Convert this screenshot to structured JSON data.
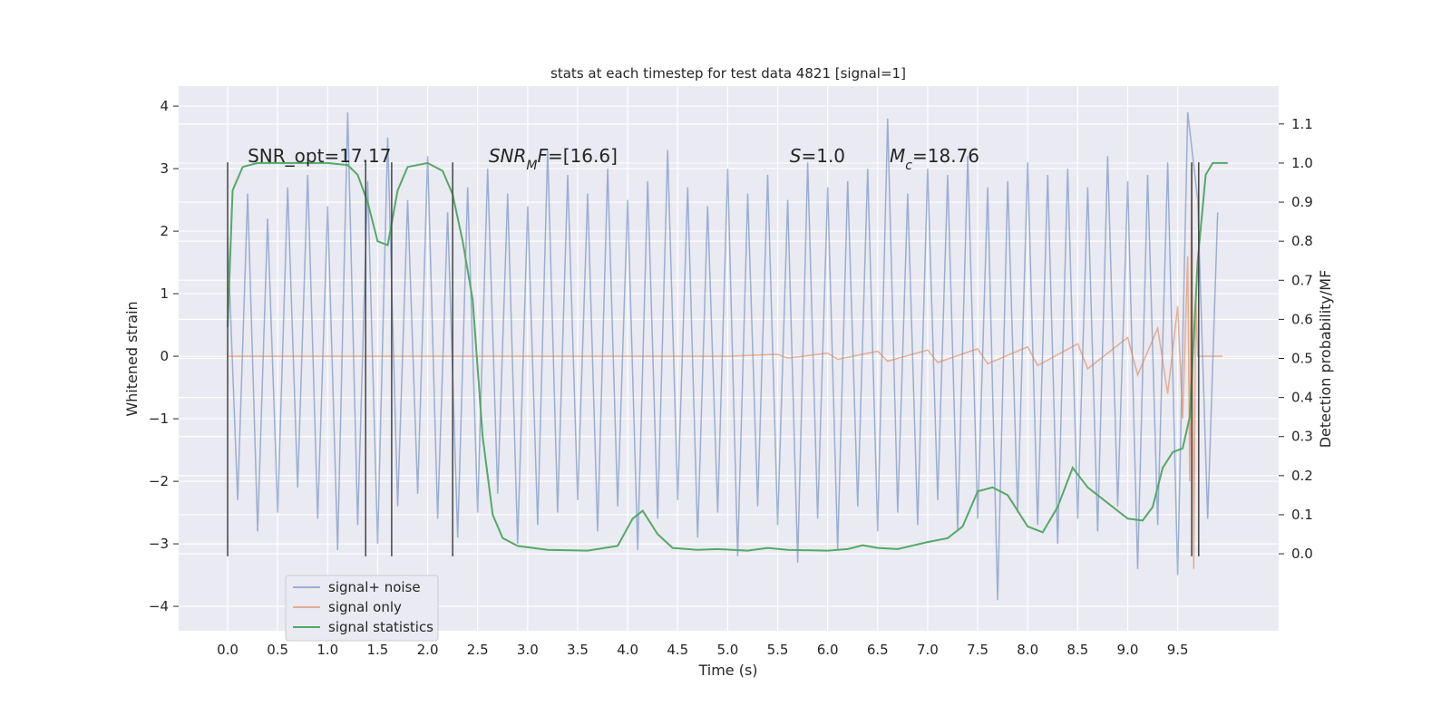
{
  "chart_data": {
    "type": "line",
    "title": "stats at each timestep for test data 4821 [signal=1]",
    "xlabel": "Time (s)",
    "ylabel": "Whitened strain",
    "y2label": "Detection probability/MF",
    "xlim": [
      -0.49,
      10.51
    ],
    "ylim": [
      -4.39,
      4.32
    ],
    "y2lim": [
      -0.197,
      1.197
    ],
    "xticks": [
      {
        "value": 0,
        "label": "0.0"
      },
      0.5,
      {
        "value": 1,
        "label": "1.0"
      },
      1.5,
      {
        "value": 2,
        "label": "2.0"
      },
      2.5,
      {
        "value": 3,
        "label": "3.0"
      },
      3.5,
      {
        "value": 4,
        "label": "4.0"
      },
      4.5,
      {
        "value": 5,
        "label": "5.0"
      },
      5.5,
      {
        "value": 6,
        "label": "6.0"
      },
      6.5,
      {
        "value": 7,
        "label": "7.0"
      },
      7.5,
      {
        "value": 8,
        "label": "8.0"
      },
      8.5,
      {
        "value": 9,
        "label": "9.0"
      },
      9.5
    ],
    "yticks": [
      {
        "value": -4,
        "label": "−4"
      },
      {
        "value": -3,
        "label": "−3"
      },
      {
        "value": -2,
        "label": "−2"
      },
      {
        "value": -1,
        "label": "−1"
      },
      0,
      1,
      2,
      3,
      4
    ],
    "y2ticks": [
      {
        "value": 0,
        "label": "0.0"
      },
      0.1,
      0.2,
      0.3,
      0.4,
      0.5,
      0.6,
      0.7,
      0.8,
      0.9,
      {
        "value": 1,
        "label": "1.0"
      },
      1.1
    ],
    "grid": true,
    "legend": "lower left",
    "series": [
      {
        "name": "signal+ noise",
        "color": "#4c72b0",
        "opacity": 0.5,
        "x": [
          0,
          0.1,
          0.2,
          0.3,
          0.4,
          0.5,
          0.6,
          0.7,
          0.8,
          0.9,
          1,
          1.1,
          1.2,
          1.3,
          1.4,
          1.5,
          1.6,
          1.7,
          1.8,
          1.9,
          2,
          2.1,
          2.2,
          2.3,
          2.4,
          2.5,
          2.6,
          2.7,
          2.8,
          2.9,
          3,
          3.1,
          3.2,
          3.3,
          3.4,
          3.5,
          3.6,
          3.7,
          3.8,
          3.9,
          4,
          4.1,
          4.2,
          4.3,
          4.4,
          4.5,
          4.6,
          4.7,
          4.8,
          4.9,
          5,
          5.1,
          5.2,
          5.3,
          5.4,
          5.5,
          5.6,
          5.7,
          5.8,
          5.9,
          6,
          6.1,
          6.2,
          6.3,
          6.4,
          6.5,
          6.6,
          6.7,
          6.8,
          6.9,
          7,
          7.1,
          7.2,
          7.3,
          7.4,
          7.5,
          7.6,
          7.7,
          7.8,
          7.9,
          8,
          8.1,
          8.2,
          8.3,
          8.4,
          8.5,
          8.6,
          8.7,
          8.8,
          8.9,
          9,
          9.1,
          9.2,
          9.3,
          9.4,
          9.5,
          9.6,
          9.7,
          9.8,
          9.9
        ],
        "values": [
          1.9,
          -2.3,
          2.6,
          -2.8,
          2.2,
          -2.5,
          2.7,
          -2.1,
          2.9,
          -2.6,
          2.4,
          -3.1,
          3.9,
          -2.7,
          2.8,
          -3.0,
          3.5,
          -2.4,
          2.5,
          -2.2,
          3.2,
          -2.6,
          2.3,
          -2.9,
          2.7,
          -2.5,
          3.0,
          -2.2,
          2.6,
          -3.0,
          2.4,
          -2.7,
          3.3,
          -2.5,
          2.9,
          -2.3,
          2.6,
          -2.8,
          3.0,
          -2.4,
          2.5,
          -3.1,
          2.8,
          -2.6,
          3.3,
          -2.3,
          2.7,
          -2.9,
          2.4,
          -2.5,
          3.0,
          -3.2,
          2.6,
          -2.4,
          2.9,
          -2.7,
          2.5,
          -3.3,
          3.1,
          -2.6,
          2.7,
          -3.1,
          2.8,
          -2.4,
          3.0,
          -2.8,
          3.8,
          -2.5,
          2.6,
          -2.7,
          3.0,
          -2.3,
          2.9,
          -2.8,
          3.2,
          -2.6,
          2.7,
          -3.9,
          2.8,
          -2.5,
          3.1,
          -2.7,
          2.9,
          -3.0,
          3.0,
          -2.6,
          2.7,
          -2.8,
          3.2,
          -2.4,
          2.8,
          -3.4,
          2.9,
          -2.7,
          3.1,
          -3.5,
          3.9,
          2.5,
          -2.6,
          2.3
        ]
      },
      {
        "name": "signal only",
        "color": "#dd8452",
        "opacity": 0.6,
        "x": [
          0,
          5,
          5.5,
          5.6,
          6.0,
          6.1,
          6.5,
          6.6,
          7.0,
          7.1,
          7.5,
          7.6,
          8.0,
          8.1,
          8.5,
          8.6,
          9.0,
          9.1,
          9.3,
          9.4,
          9.5,
          9.55,
          9.6,
          9.62,
          9.64,
          9.66,
          9.68,
          9.7,
          9.95
        ],
        "values": [
          0,
          0,
          0.03,
          -0.03,
          0.05,
          -0.05,
          0.08,
          -0.08,
          0.1,
          -0.1,
          0.12,
          -0.12,
          0.15,
          -0.15,
          0.2,
          -0.2,
          0.3,
          -0.3,
          0.45,
          -0.6,
          0.8,
          -1.0,
          1.6,
          -2.0,
          3.0,
          -3.4,
          1.0,
          0,
          0
        ]
      },
      {
        "name": "signal statistics",
        "color": "#55a868",
        "axis": "y2",
        "x": [
          0,
          0.05,
          0.15,
          0.3,
          1.0,
          1.2,
          1.3,
          1.4,
          1.5,
          1.6,
          1.7,
          1.8,
          2.0,
          2.15,
          2.25,
          2.35,
          2.45,
          2.55,
          2.65,
          2.75,
          2.9,
          3.2,
          3.6,
          3.9,
          4.05,
          4.15,
          4.3,
          4.45,
          4.7,
          4.9,
          5.2,
          5.4,
          5.6,
          6.0,
          6.2,
          6.35,
          6.5,
          6.7,
          7.0,
          7.2,
          7.35,
          7.5,
          7.65,
          7.8,
          8.0,
          8.15,
          8.3,
          8.45,
          8.6,
          8.8,
          9.0,
          9.15,
          9.25,
          9.35,
          9.45,
          9.55,
          9.62,
          9.7,
          9.78,
          9.85,
          10.0
        ],
        "values": [
          0.58,
          0.93,
          0.99,
          1.0,
          1.0,
          0.995,
          0.97,
          0.9,
          0.8,
          0.79,
          0.93,
          0.99,
          1.0,
          0.98,
          0.92,
          0.8,
          0.65,
          0.3,
          0.1,
          0.04,
          0.02,
          0.01,
          0.008,
          0.02,
          0.09,
          0.11,
          0.05,
          0.015,
          0.01,
          0.012,
          0.008,
          0.015,
          0.01,
          0.008,
          0.012,
          0.022,
          0.015,
          0.012,
          0.03,
          0.04,
          0.07,
          0.16,
          0.17,
          0.15,
          0.07,
          0.055,
          0.12,
          0.22,
          0.17,
          0.13,
          0.09,
          0.085,
          0.12,
          0.22,
          0.26,
          0.27,
          0.35,
          0.75,
          0.97,
          1.0,
          1.0
        ]
      }
    ],
    "vlines": [
      {
        "x": 0,
        "ymin": -3.2,
        "ymax": 3.1
      },
      {
        "x": 1.38,
        "ymin": -3.2,
        "ymax": 3.1
      },
      {
        "x": 1.64,
        "ymin": -3.2,
        "ymax": 3.1
      },
      {
        "x": 2.25,
        "ymin": -3.2,
        "ymax": 3.1
      },
      {
        "x": 9.64,
        "ymin": -3.2,
        "ymax": 3.1
      },
      {
        "x": 9.71,
        "ymin": -3.2,
        "ymax": 3.1
      }
    ],
    "annotations": [
      {
        "x": 0.2,
        "y": 3.1,
        "parts": [
          {
            "text": "SNR_opt=17.17"
          }
        ]
      },
      {
        "x": 2.61,
        "y": 3.1,
        "parts": [
          {
            "text": "SNR",
            "italic": true
          },
          {
            "text": "M",
            "italic": true,
            "sub": true
          },
          {
            "text": "F",
            "italic": true
          },
          {
            "text": "=[16.6]"
          }
        ]
      },
      {
        "x": 5.62,
        "y": 3.1,
        "parts": [
          {
            "text": "S",
            "italic": true
          },
          {
            "text": "=1.0"
          }
        ]
      },
      {
        "x": 6.62,
        "y": 3.1,
        "parts": [
          {
            "text": "M",
            "italic": true
          },
          {
            "text": "c",
            "italic": true,
            "sub": true
          },
          {
            "text": "=18.76"
          }
        ]
      }
    ]
  }
}
